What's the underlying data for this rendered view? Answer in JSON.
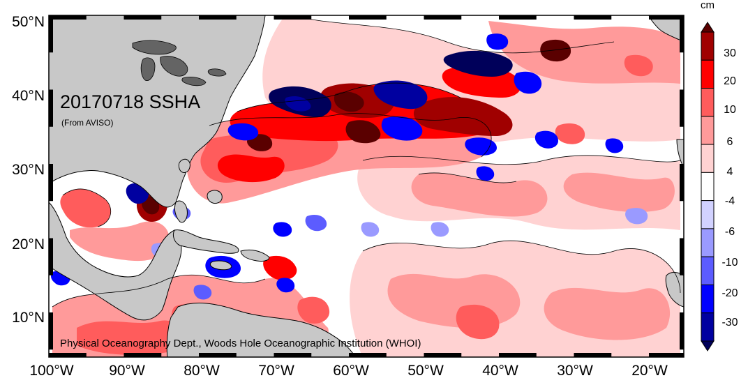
{
  "map": {
    "title": "20170718 SSHA",
    "source": "(From AVISO)",
    "credit": "Physical Oceanography Dept., Woods Hole Oceanographic Institution (WHOI)",
    "lat_labels": [
      "50°N",
      "40°N",
      "30°N",
      "20°N",
      "10°N"
    ],
    "lon_labels": [
      "100°W",
      "90°W",
      "80°W",
      "70°W",
      "60°W",
      "50°W",
      "40°W",
      "30°W",
      "20°W"
    ],
    "extent": {
      "lon_min": -100,
      "lon_max": -15,
      "lat_min": 5,
      "lat_max": 51
    }
  },
  "colorbar": {
    "unit": "cm",
    "tick_labels": [
      "30",
      "20",
      "10",
      "6",
      "4",
      "-4",
      "-6",
      "-10",
      "-20",
      "-30"
    ],
    "colors": [
      "#5a0000",
      "#a00000",
      "#ff0000",
      "#ff5c5c",
      "#ff9a9a",
      "#ffd2d2",
      "#ffffff",
      "#d2d2ff",
      "#9a9aff",
      "#5c5cff",
      "#0000ff",
      "#0000a0",
      "#00005a"
    ]
  },
  "colors": {
    "land": "#c8c8c8",
    "ocean": "#ffffff"
  }
}
